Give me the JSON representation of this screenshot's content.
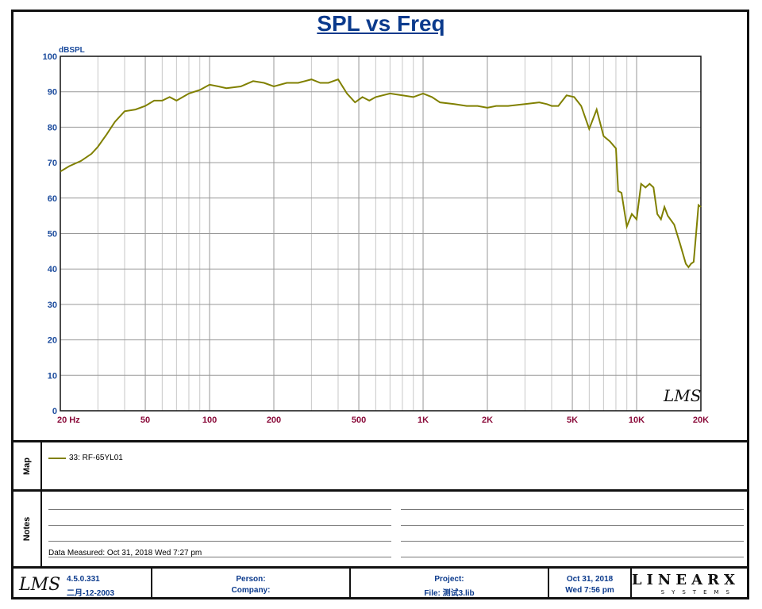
{
  "chart_data": {
    "type": "line",
    "title": "SPL vs Freq",
    "ylabel": "dBSPL",
    "xlabel": "",
    "x_scale": "log",
    "xlim": [
      20,
      20000
    ],
    "ylim": [
      0,
      100
    ],
    "y_ticks": [
      0,
      10,
      20,
      30,
      40,
      50,
      60,
      70,
      80,
      90,
      100
    ],
    "x_ticks": [
      {
        "value": 20,
        "label": "20  Hz"
      },
      {
        "value": 50,
        "label": "50"
      },
      {
        "value": 100,
        "label": "100"
      },
      {
        "value": 200,
        "label": "200"
      },
      {
        "value": 500,
        "label": "500"
      },
      {
        "value": 1000,
        "label": "1K"
      },
      {
        "value": 2000,
        "label": "2K"
      },
      {
        "value": 5000,
        "label": "5K"
      },
      {
        "value": 10000,
        "label": "10K"
      },
      {
        "value": 20000,
        "label": "20K"
      }
    ],
    "grid": true,
    "series": [
      {
        "name": "33: RF-65YL01",
        "color": "#808000",
        "points": [
          [
            20,
            67.5
          ],
          [
            22,
            69
          ],
          [
            25,
            70.5
          ],
          [
            28,
            72.5
          ],
          [
            30,
            74.5
          ],
          [
            33,
            78
          ],
          [
            36,
            81.5
          ],
          [
            40,
            84.5
          ],
          [
            45,
            85
          ],
          [
            50,
            86
          ],
          [
            55,
            87.5
          ],
          [
            60,
            87.5
          ],
          [
            65,
            88.5
          ],
          [
            70,
            87.5
          ],
          [
            80,
            89.5
          ],
          [
            90,
            90.5
          ],
          [
            100,
            92
          ],
          [
            110,
            91.5
          ],
          [
            120,
            91
          ],
          [
            140,
            91.5
          ],
          [
            160,
            93
          ],
          [
            180,
            92.5
          ],
          [
            200,
            91.5
          ],
          [
            230,
            92.5
          ],
          [
            260,
            92.5
          ],
          [
            300,
            93.5
          ],
          [
            330,
            92.5
          ],
          [
            360,
            92.5
          ],
          [
            400,
            93.5
          ],
          [
            440,
            89.5
          ],
          [
            480,
            87
          ],
          [
            520,
            88.5
          ],
          [
            560,
            87.5
          ],
          [
            600,
            88.5
          ],
          [
            700,
            89.5
          ],
          [
            800,
            89
          ],
          [
            900,
            88.5
          ],
          [
            1000,
            89.5
          ],
          [
            1100,
            88.5
          ],
          [
            1200,
            87
          ],
          [
            1400,
            86.5
          ],
          [
            1600,
            86
          ],
          [
            1800,
            86
          ],
          [
            2000,
            85.5
          ],
          [
            2200,
            86
          ],
          [
            2500,
            86
          ],
          [
            3000,
            86.5
          ],
          [
            3500,
            87
          ],
          [
            3800,
            86.5
          ],
          [
            4000,
            86
          ],
          [
            4300,
            86
          ],
          [
            4700,
            89
          ],
          [
            5100,
            88.5
          ],
          [
            5500,
            86
          ],
          [
            6000,
            79.5
          ],
          [
            6500,
            85
          ],
          [
            7000,
            77.5
          ],
          [
            7500,
            76
          ],
          [
            8000,
            74
          ],
          [
            8200,
            62
          ],
          [
            8500,
            61.5
          ],
          [
            9000,
            52
          ],
          [
            9500,
            55.5
          ],
          [
            10000,
            54
          ],
          [
            10500,
            64
          ],
          [
            11000,
            63
          ],
          [
            11500,
            64
          ],
          [
            12000,
            63
          ],
          [
            12500,
            55.5
          ],
          [
            13000,
            54
          ],
          [
            13500,
            57.5
          ],
          [
            14000,
            55
          ],
          [
            15000,
            52.5
          ],
          [
            16000,
            47
          ],
          [
            17000,
            41.5
          ],
          [
            17500,
            40.5
          ],
          [
            18000,
            41.5
          ],
          [
            18500,
            42
          ],
          [
            19000,
            50
          ],
          [
            19500,
            58
          ],
          [
            20000,
            57.5
          ]
        ]
      }
    ]
  },
  "watermark": "LMS",
  "map": {
    "label": "Map",
    "legend_entry": "33: RF-65YL01"
  },
  "notes": {
    "label": "Notes",
    "measured": "Data Measured: Oct 31, 2018  Wed  7:27 pm"
  },
  "footer": {
    "logo": "LMS",
    "version": "4.5.0.331",
    "version_date": "二月-12-2003",
    "person": "Person:",
    "company": "Company:",
    "project": "Project:",
    "file": "File: 测试3.lib",
    "date": "Oct 31, 2018",
    "day_time": "Wed  7:56 pm",
    "brand": "LINEARX",
    "brand_sub": "SYSTEMS"
  }
}
